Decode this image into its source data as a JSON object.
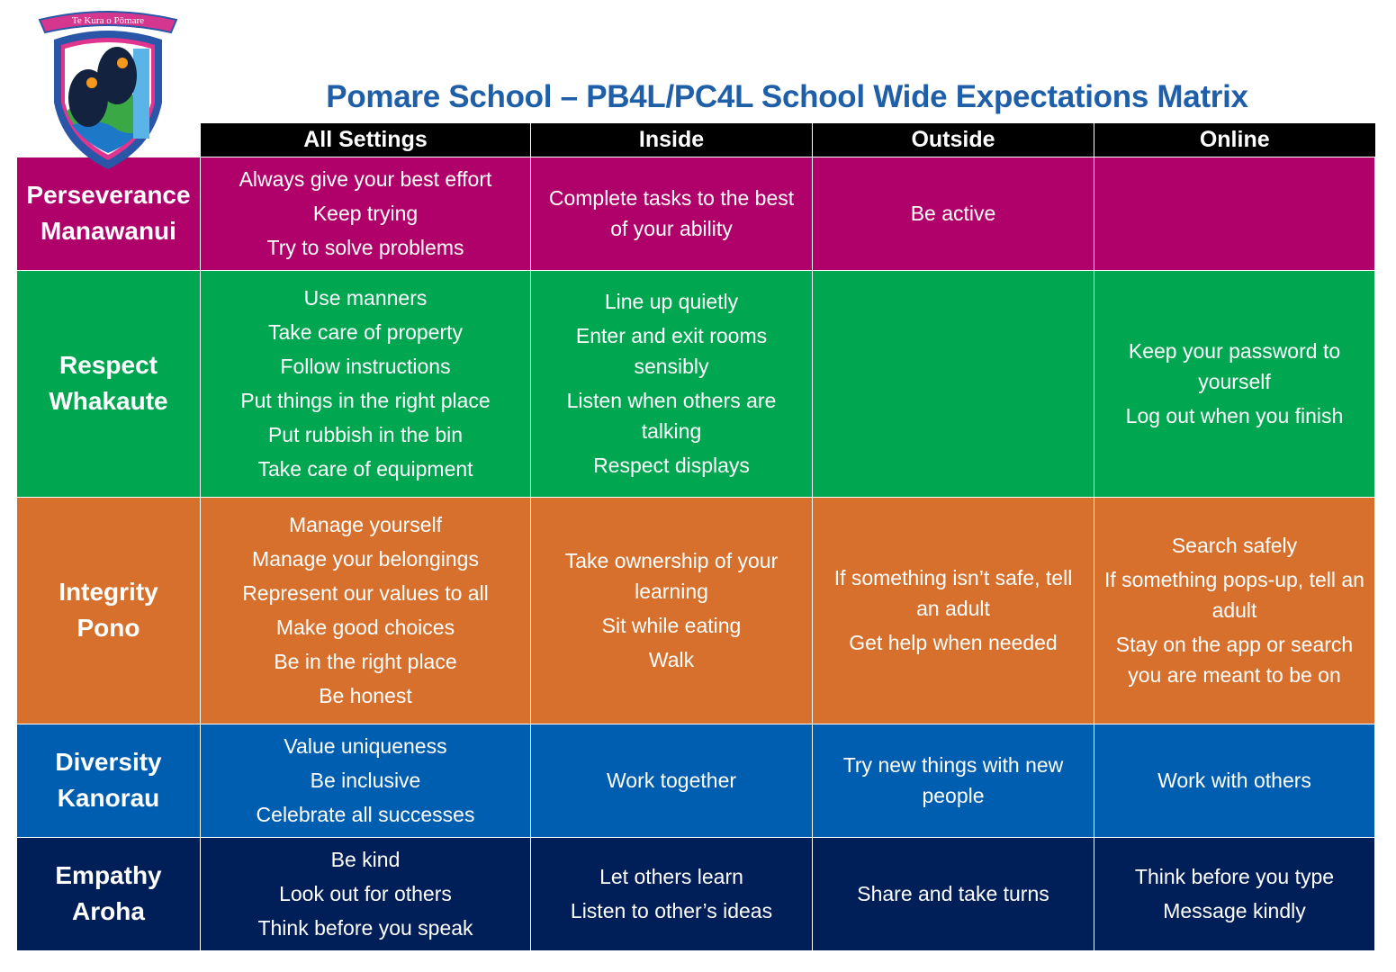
{
  "logo": {
    "text": "Te Kura o Pōmare"
  },
  "title": "Pomare School – PB4L/PC4L School Wide Expectations Matrix",
  "columns": [
    "All Settings",
    "Inside",
    "Outside",
    "Online"
  ],
  "colors": {
    "perseverance": "#B0006A",
    "respect": "#00A650",
    "integrity": "#D6702C",
    "diversity": "#005EB0",
    "empathy": "#001E57"
  },
  "rows": [
    {
      "label1": "Perseverance",
      "label2": "Manawanui",
      "cells": [
        [
          "Always give your best effort",
          "Keep trying",
          "Try to solve problems"
        ],
        [
          "Complete tasks to the best of your ability"
        ],
        [
          "Be active"
        ],
        []
      ]
    },
    {
      "label1": "Respect",
      "label2": "Whakaute",
      "cells": [
        [
          "Use manners",
          "Take care of property",
          "Follow instructions",
          "Put things in the right place",
          "Put rubbish in the bin",
          "Take care of equipment"
        ],
        [
          "Line up  quietly",
          "Enter and exit rooms sensibly",
          "Listen when others are talking",
          "Respect displays"
        ],
        [],
        [
          "Keep your password to yourself",
          "Log out when you finish"
        ]
      ]
    },
    {
      "label1": "Integrity",
      "label2": "Pono",
      "cells": [
        [
          "Manage  yourself",
          "Manage your belongings",
          "Represent our values to all",
          "Make good choices",
          "Be in the right place",
          "Be honest"
        ],
        [
          "Take ownership of your learning",
          "Sit while eating",
          "Walk"
        ],
        [
          "If something isn’t safe, tell an adult",
          "Get help when needed"
        ],
        [
          "Search safely",
          "If something pops-up, tell an adult",
          "Stay on the app or search you are meant to be on"
        ]
      ]
    },
    {
      "label1": "Diversity",
      "label2": "Kanorau",
      "cells": [
        [
          "Value uniqueness",
          "Be inclusive",
          "Celebrate all successes"
        ],
        [
          "Work together"
        ],
        [
          "Try new things with new people"
        ],
        [
          "Work with others"
        ]
      ]
    },
    {
      "label1": "Empathy",
      "label2": "Aroha",
      "cells": [
        [
          "Be kind",
          "Look out for others",
          "Think before you speak"
        ],
        [
          "Let others learn",
          "Listen to other’s ideas"
        ],
        [
          "Share and take turns"
        ],
        [
          "Think before you type",
          "Message kindly"
        ]
      ]
    }
  ]
}
